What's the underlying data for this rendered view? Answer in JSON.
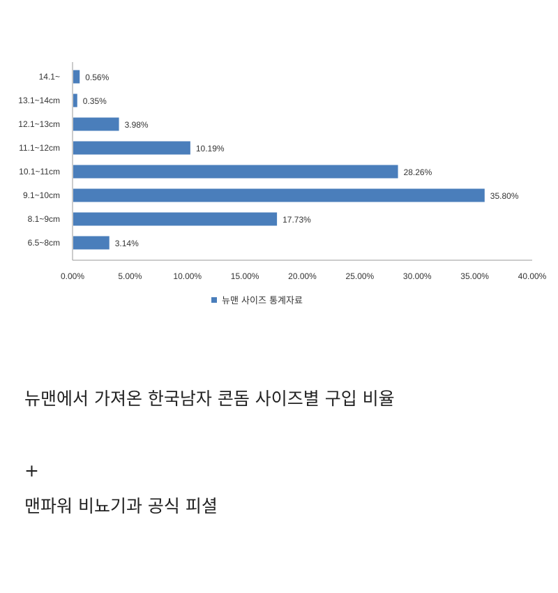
{
  "chart_data": {
    "type": "bar",
    "orientation": "horizontal",
    "categories": [
      "14.1~",
      "13.1~14cm",
      "12.1~13cm",
      "11.1~12cm",
      "10.1~11cm",
      "9.1~10cm",
      "8.1~9cm",
      "6.5~8cm"
    ],
    "series": [
      {
        "name": "뉴맨 사이즈 통계자료",
        "values": [
          0.56,
          0.35,
          3.98,
          10.19,
          28.26,
          35.8,
          17.73,
          3.14
        ],
        "labels": [
          "0.56%",
          "0.35%",
          "3.98%",
          "10.19%",
          "28.26%",
          "35.80%",
          "17.73%",
          "3.14%"
        ],
        "color": "#4a7ebb"
      }
    ],
    "xlim": [
      0,
      40
    ],
    "xticks": [
      0,
      5,
      10,
      15,
      20,
      25,
      30,
      35,
      40
    ],
    "xtick_labels": [
      "0.00%",
      "5.00%",
      "10.00%",
      "15.00%",
      "20.00%",
      "25.00%",
      "30.00%",
      "35.00%",
      "40.00%"
    ],
    "grid": false,
    "legend": "bottom"
  },
  "text": {
    "caption_1": "뉴맨에서 가져온 한국남자 콘돔 사이즈별 구입 비율",
    "plus": "+",
    "caption_2": "맨파워 비뇨기과 공식 피셜"
  },
  "colors": {
    "bar": "#4a7ebb",
    "axis": "#999999"
  }
}
